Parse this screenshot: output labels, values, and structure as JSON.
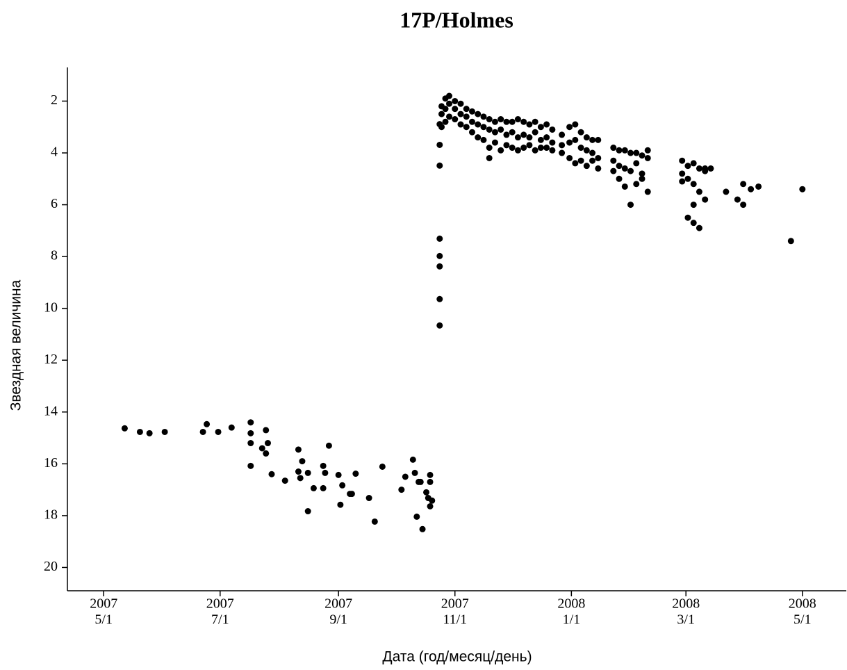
{
  "chart_data": {
    "type": "scatter",
    "title": "17P/Holmes",
    "x_label": "Дата (год/месяц/день)",
    "y_label": "Звездная величина",
    "xlim": [
      "2007-04-12",
      "2008-05-24"
    ],
    "xticks": [
      {
        "value": "2007-05-01",
        "label": [
          "2007",
          "5/1"
        ]
      },
      {
        "value": "2007-07-01",
        "label": [
          "2007",
          "7/1"
        ]
      },
      {
        "value": "2007-09-01",
        "label": [
          "2007",
          "9/1"
        ]
      },
      {
        "value": "2007-11-01",
        "label": [
          "2007",
          "11/1"
        ]
      },
      {
        "value": "2008-01-01",
        "label": [
          "2008",
          "1/1"
        ]
      },
      {
        "value": "2008-03-01",
        "label": [
          "2008",
          "3/1"
        ]
      },
      {
        "value": "2008-05-01",
        "label": [
          "2008",
          "5/1"
        ]
      }
    ],
    "ylim": [
      0.7,
      20.9
    ],
    "y_inverted": true,
    "yticks": [
      2,
      4,
      6,
      8,
      10,
      12,
      14,
      16,
      18,
      20
    ],
    "color": "#000000",
    "x": [
      "2007-05-12",
      "2007-05-20",
      "2007-05-25",
      "2007-06-02",
      "2007-06-22",
      "2007-06-24",
      "2007-06-30",
      "2007-07-07",
      "2007-07-17",
      "2007-07-17",
      "2007-07-17",
      "2007-07-17",
      "2007-07-23",
      "2007-07-25",
      "2007-07-26",
      "2007-07-25",
      "2007-07-28",
      "2007-08-04",
      "2007-08-11",
      "2007-08-11",
      "2007-08-12",
      "2007-08-13",
      "2007-08-16",
      "2007-08-16",
      "2007-08-19",
      "2007-08-24",
      "2007-08-24",
      "2007-08-25",
      "2007-08-27",
      "2007-09-01",
      "2007-09-02",
      "2007-09-03",
      "2007-09-07",
      "2007-09-08",
      "2007-09-10",
      "2007-09-17",
      "2007-09-20",
      "2007-09-24",
      "2007-10-04",
      "2007-10-06",
      "2007-10-10",
      "2007-10-11",
      "2007-10-12",
      "2007-10-13",
      "2007-10-15",
      "2007-10-14",
      "2007-10-17",
      "2007-10-18",
      "2007-10-19",
      "2007-10-19",
      "2007-10-19",
      "2007-10-20",
      "2007-10-24",
      "2007-10-24",
      "2007-10-24",
      "2007-10-24",
      "2007-10-24",
      "2007-10-24",
      "2007-10-24",
      "2007-10-24",
      "2007-10-25",
      "2007-10-25",
      "2007-10-25",
      "2007-10-27",
      "2007-10-27",
      "2007-10-27",
      "2007-10-29",
      "2007-10-29",
      "2007-10-29",
      "2007-11-01",
      "2007-11-01",
      "2007-11-01",
      "2007-11-04",
      "2007-11-04",
      "2007-11-04",
      "2007-11-07",
      "2007-11-07",
      "2007-11-07",
      "2007-11-10",
      "2007-11-10",
      "2007-11-10",
      "2007-11-13",
      "2007-11-13",
      "2007-11-13",
      "2007-11-16",
      "2007-11-16",
      "2007-11-16",
      "2007-11-19",
      "2007-11-19",
      "2007-11-19",
      "2007-11-19",
      "2007-11-22",
      "2007-11-22",
      "2007-11-22",
      "2007-11-25",
      "2007-11-25",
      "2007-11-25",
      "2007-11-28",
      "2007-11-28",
      "2007-11-28",
      "2007-12-01",
      "2007-12-01",
      "2007-12-01",
      "2007-12-04",
      "2007-12-04",
      "2007-12-04",
      "2007-12-07",
      "2007-12-07",
      "2007-12-07",
      "2007-12-10",
      "2007-12-10",
      "2007-12-10",
      "2007-12-13",
      "2007-12-13",
      "2007-12-13",
      "2007-12-16",
      "2007-12-16",
      "2007-12-16",
      "2007-12-19",
      "2007-12-19",
      "2007-12-19",
      "2007-12-22",
      "2007-12-22",
      "2007-12-22",
      "2007-12-27",
      "2007-12-27",
      "2007-12-27",
      "2007-12-31",
      "2007-12-31",
      "2007-12-31",
      "2008-01-03",
      "2008-01-03",
      "2008-01-03",
      "2008-01-06",
      "2008-01-06",
      "2008-01-06",
      "2008-01-09",
      "2008-01-09",
      "2008-01-09",
      "2008-01-12",
      "2008-01-12",
      "2008-01-12",
      "2008-01-15",
      "2008-01-15",
      "2008-01-15",
      "2008-01-23",
      "2008-01-23",
      "2008-01-23",
      "2008-01-26",
      "2008-01-26",
      "2008-01-26",
      "2008-01-29",
      "2008-01-29",
      "2008-01-29",
      "2008-02-01",
      "2008-02-01",
      "2008-02-01",
      "2008-02-04",
      "2008-02-04",
      "2008-02-04",
      "2008-02-07",
      "2008-02-07",
      "2008-02-07",
      "2008-02-10",
      "2008-02-10",
      "2008-02-10",
      "2008-02-28",
      "2008-02-28",
      "2008-02-28",
      "2008-03-02",
      "2008-03-02",
      "2008-03-02",
      "2008-03-05",
      "2008-03-05",
      "2008-03-05",
      "2008-03-05",
      "2008-03-08",
      "2008-03-08",
      "2008-03-08",
      "2008-03-11",
      "2008-03-11",
      "2008-03-11",
      "2008-03-14",
      "2008-03-22",
      "2008-03-28",
      "2008-03-31",
      "2008-03-31",
      "2008-04-04",
      "2008-04-08",
      "2008-04-25",
      "2008-05-01"
    ],
    "values": [
      14.63,
      14.77,
      14.82,
      14.77,
      14.77,
      14.47,
      14.77,
      14.6,
      14.4,
      14.82,
      15.2,
      16.08,
      15.4,
      15.6,
      15.2,
      14.7,
      16.4,
      16.65,
      15.45,
      16.3,
      16.55,
      15.9,
      16.35,
      17.83,
      16.94,
      16.08,
      16.94,
      16.35,
      15.3,
      16.43,
      17.58,
      16.83,
      17.16,
      17.16,
      16.38,
      17.32,
      18.23,
      16.11,
      17.0,
      16.5,
      15.84,
      16.35,
      18.04,
      16.7,
      18.52,
      16.7,
      17.1,
      17.32,
      17.64,
      16.43,
      16.7,
      17.42,
      10.66,
      9.64,
      8.38,
      7.98,
      7.31,
      4.49,
      3.69,
      2.89,
      2.2,
      2.5,
      3.0,
      1.9,
      2.3,
      2.8,
      1.8,
      2.1,
      2.6,
      2.0,
      2.3,
      2.7,
      2.1,
      2.5,
      2.9,
      2.3,
      2.6,
      3.0,
      2.4,
      2.8,
      3.2,
      2.5,
      2.9,
      3.4,
      2.6,
      3.0,
      3.5,
      2.7,
      3.1,
      3.8,
      4.2,
      2.8,
      3.2,
      3.6,
      2.7,
      3.1,
      3.9,
      2.8,
      3.3,
      3.7,
      2.8,
      3.2,
      3.8,
      2.7,
      3.4,
      3.9,
      2.8,
      3.3,
      3.8,
      2.9,
      3.4,
      3.7,
      2.8,
      3.2,
      3.9,
      3.0,
      3.5,
      3.8,
      2.9,
      3.4,
      3.8,
      3.1,
      3.6,
      3.9,
      3.3,
      3.7,
      4.0,
      3.0,
      3.6,
      4.2,
      2.9,
      3.5,
      4.4,
      3.2,
      3.8,
      4.3,
      3.4,
      3.9,
      4.5,
      3.5,
      4.0,
      4.3,
      3.5,
      4.2,
      4.6,
      3.8,
      4.3,
      4.7,
      3.9,
      4.5,
      5.0,
      3.9,
      4.6,
      5.3,
      4.0,
      4.7,
      6.0,
      4.0,
      4.4,
      5.2,
      4.1,
      4.8,
      5.0,
      3.9,
      4.2,
      5.5,
      4.3,
      4.8,
      5.1,
      4.5,
      5.0,
      6.5,
      4.4,
      5.2,
      6.0,
      6.7,
      4.6,
      5.5,
      6.9,
      4.6,
      5.8,
      4.7,
      4.6,
      5.5,
      5.8,
      5.2,
      6.0,
      5.4,
      5.3,
      7.4,
      5.4
    ]
  }
}
